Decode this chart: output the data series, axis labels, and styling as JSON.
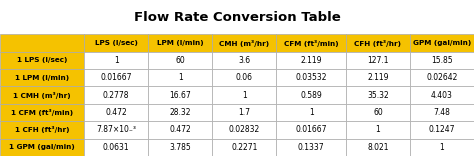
{
  "title": "Flow Rate Conversion Table",
  "col_headers": [
    "",
    "LPS (l/sec)",
    "LPM (l/min)",
    "CMH (m³/hr)",
    "CFM (ft³/min)",
    "CFH (ft³/hr)",
    "GPM (gal/min)"
  ],
  "row_headers": [
    "1 LPS (l/sec)",
    "1 LPM (l/min)",
    "1 CMH (m³/hr)",
    "1 CFM (ft³/min)",
    "1 CFH (ft³/hr)",
    "1 GPM (gal/min)"
  ],
  "table_data": [
    [
      "1",
      "60",
      "3.6",
      "2.119",
      "127.1",
      "15.85"
    ],
    [
      "0.01667",
      "1",
      "0.06",
      "0.03532",
      "2.119",
      "0.02642"
    ],
    [
      "0.2778",
      "16.67",
      "1",
      "0.589",
      "35.32",
      "4.403"
    ],
    [
      "0.472",
      "28.32",
      "1.7",
      "1",
      "60",
      "7.48"
    ],
    [
      "7.87×10₋³",
      "0.472",
      "0.02832",
      "0.01667",
      "1",
      "0.1247"
    ],
    [
      "0.0631",
      "3.785",
      "0.2271",
      "0.1337",
      "8.021",
      "1"
    ]
  ],
  "header_bg": "#F5C200",
  "row_header_bg": "#F5C200",
  "alt_row_bg": "#FFFFFF",
  "title_bg": "#FFFFFF",
  "border_color": "#CCCCCC",
  "header_text_color": "#000000",
  "data_text_color": "#000000",
  "title_color": "#000000"
}
